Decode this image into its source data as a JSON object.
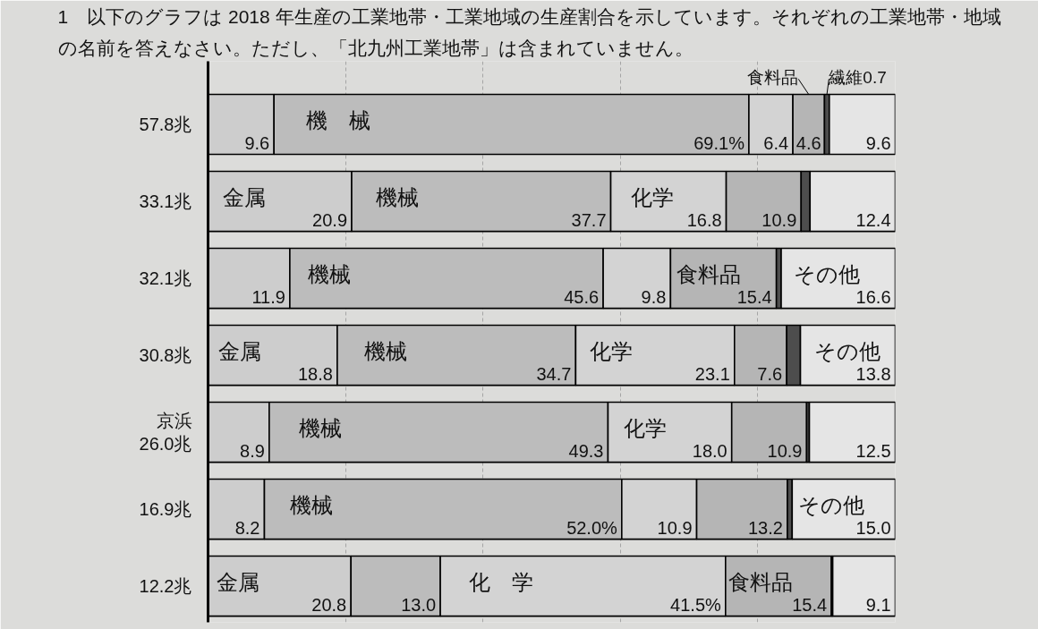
{
  "chart_data": {
    "type": "bar",
    "orientation": "horizontal",
    "stacked": true,
    "title": "1　以下のグラフは 2018 年生産の工業地帯・工業地域の生産割合を示しています。それぞれの工業地帯・地域の名前を答えなさい。ただし、「北九州工業地帯」は含まれていません。",
    "categories": [
      "57.8兆",
      "33.1兆",
      "32.1兆",
      "30.8兆",
      "京浜 26.0兆",
      "16.9兆",
      "12.2兆"
    ],
    "series": [
      {
        "color": "#cdcdcd",
        "values": [
          9.6,
          20.9,
          11.9,
          18.8,
          8.9,
          8.2,
          20.8
        ],
        "value_labels": [
          "9.6",
          "20.9",
          "11.9",
          "18.8",
          "8.9",
          "8.2",
          "20.8"
        ]
      },
      {
        "color": "#bcbcbc",
        "values": [
          69.1,
          37.7,
          45.6,
          34.7,
          49.3,
          52.0,
          13.0
        ],
        "value_labels": [
          "69.1%",
          "37.7",
          "45.6",
          "34.7",
          "49.3",
          "52.0%",
          "13.0"
        ]
      },
      {
        "color": "#d3d3d3",
        "values": [
          6.4,
          16.8,
          9.8,
          23.1,
          18.0,
          10.9,
          41.5
        ],
        "value_labels": [
          "6.4",
          "16.8",
          "9.8",
          "23.1",
          "18.0",
          "10.9",
          "41.5%"
        ]
      },
      {
        "name": "食料品",
        "color": "#b5b5b5",
        "values": [
          4.6,
          10.9,
          15.4,
          7.6,
          10.9,
          13.2,
          15.4
        ],
        "value_labels": [
          "4.6",
          "10.9",
          "15.4",
          "7.6",
          "10.9",
          "13.2",
          "15.4"
        ]
      },
      {
        "color": "#4d4d4d",
        "values": [
          0.7,
          1.3,
          0.7,
          2.0,
          0.4,
          0.7,
          0.2
        ],
        "value_labels": [
          "繊維0.7",
          null,
          null,
          null,
          null,
          null,
          null
        ]
      },
      {
        "color": "#e5e5e5",
        "values": [
          9.6,
          12.4,
          16.6,
          13.8,
          12.5,
          15.0,
          9.1
        ],
        "value_labels": [
          "9.6",
          "12.4",
          "16.6",
          "13.8",
          "12.5",
          "15.0",
          "9.1"
        ]
      }
    ],
    "annotations": [
      {
        "text": "機　械",
        "x": 18.9,
        "y": "57.8兆"
      },
      {
        "text": "金属",
        "x": 5.3,
        "y": "33.1兆"
      },
      {
        "text": "機械",
        "x": 27.6,
        "y": "33.1兆"
      },
      {
        "text": "化学",
        "x": 64.7,
        "y": "33.1兆"
      },
      {
        "text": "機械",
        "x": 17.6,
        "y": "32.1兆"
      },
      {
        "text": "食料品",
        "x": 72.9,
        "y": "32.1兆"
      },
      {
        "text": "その他",
        "x": 90.0,
        "y": "32.1兆"
      },
      {
        "text": "金属",
        "x": 4.6,
        "y": "30.8兆"
      },
      {
        "text": "機械",
        "x": 25.8,
        "y": "30.8兆"
      },
      {
        "text": "化学",
        "x": 58.6,
        "y": "30.8兆"
      },
      {
        "text": "その他",
        "x": 93.0,
        "y": "30.8兆"
      },
      {
        "text": "機械",
        "x": 16.4,
        "y": "京浜 26.0兆"
      },
      {
        "text": "化学",
        "x": 63.6,
        "y": "京浜 26.0兆"
      },
      {
        "text": "機械",
        "x": 15.1,
        "y": "16.9兆"
      },
      {
        "text": "その他",
        "x": 90.7,
        "y": "16.9兆"
      },
      {
        "text": "金属",
        "x": 4.4,
        "y": "12.2兆"
      },
      {
        "text": "化　学",
        "x": 42.6,
        "y": "12.2兆"
      },
      {
        "text": "食料品",
        "x": 80.4,
        "y": "12.2兆"
      }
    ],
    "xlim": [
      0,
      100
    ],
    "xticks": [
      {
        "value": 0,
        "label": null
      },
      {
        "value": 20,
        "label": null
      },
      {
        "value": 40,
        "label": null
      },
      {
        "value": 60,
        "label": null
      },
      {
        "value": 80,
        "label": null
      },
      {
        "value": 100,
        "label": null
      }
    ],
    "grid": "x",
    "tick_labels": "y"
  }
}
